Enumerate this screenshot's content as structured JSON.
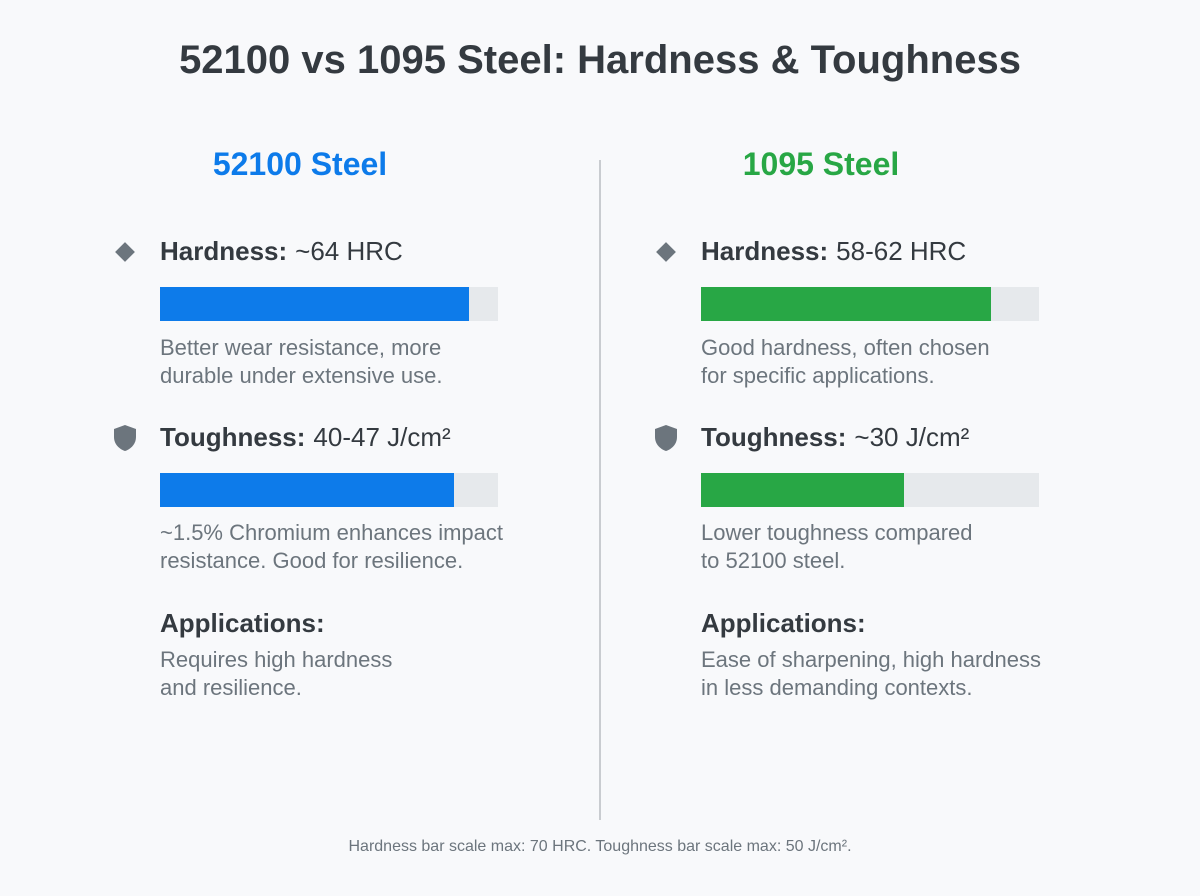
{
  "title": "52100 vs 1095 Steel: Hardness & Toughness",
  "colors": {
    "steel_52100": "#0d7bea",
    "steel_1095": "#28a745",
    "track": "#e6e9ec"
  },
  "left": {
    "heading": "52100 Steel",
    "hardness": {
      "icon": "diamond-icon",
      "label": "Hardness:",
      "value": "~64 HRC",
      "bar_fraction": 0.914,
      "description": "Better wear resistance, more\ndurable under extensive use."
    },
    "toughness": {
      "icon": "shield-icon",
      "label": "Toughness:",
      "value": "40-47 J/cm²",
      "bar_fraction": 0.87,
      "description": "~1.5% Chromium enhances impact\nresistance. Good for resilience."
    },
    "applications": {
      "label": "Applications:",
      "text": "Requires high hardness\nand resilience."
    }
  },
  "right": {
    "heading": "1095 Steel",
    "hardness": {
      "icon": "diamond-icon",
      "label": "Hardness:",
      "value": "58-62 HRC",
      "bar_fraction": 0.857,
      "description": "Good hardness, often chosen\nfor specific applications."
    },
    "toughness": {
      "icon": "shield-icon",
      "label": "Toughness:",
      "value": "~30 J/cm²",
      "bar_fraction": 0.6,
      "description": "Lower toughness compared\nto 52100 steel."
    },
    "applications": {
      "label": "Applications:",
      "text": "Ease of sharpening, high hardness\nin less demanding contexts."
    }
  },
  "footnote": "Hardness bar scale max: 70 HRC. Toughness bar scale max: 50 J/cm²."
}
